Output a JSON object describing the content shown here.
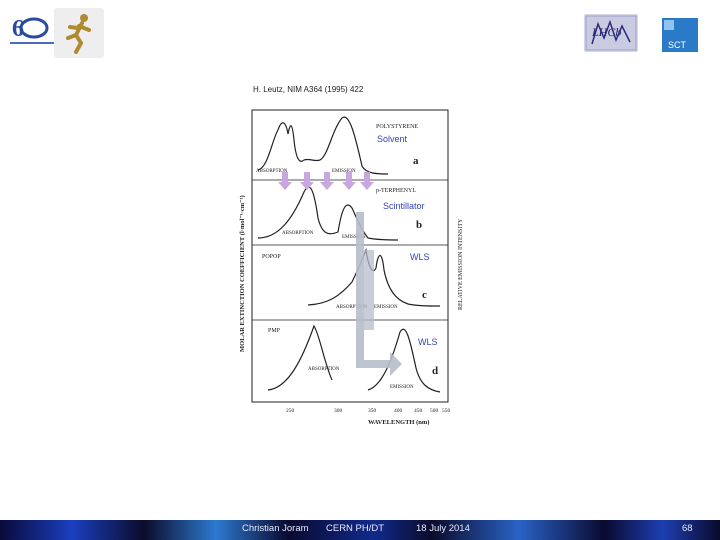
{
  "header": {
    "citation": "H. Leutz, NIM A364 (1995) 422"
  },
  "logos": {
    "lhcb_text": "LHCb",
    "sct_text": "SCT"
  },
  "figure": {
    "y_axis_left": "MOLAR EXTINCTION COEFFICIENT (l·mol⁻¹·cm⁻¹)",
    "y_axis_right": "RELATIVE EMISSION INTENSITY",
    "x_axis_label": "WAVELENGTH (nm)",
    "x_ticks": [
      "250",
      "300",
      "350",
      "400",
      "450",
      "500",
      "550"
    ],
    "panels": [
      {
        "compound": "POLYSTYRENE",
        "letter": "a",
        "absorption": "ABSORPTION",
        "emission": "EMISSION"
      },
      {
        "compound": "p-TERPHENYL",
        "letter": "b",
        "absorption": "ABSORPTION",
        "emission": "EMISSION"
      },
      {
        "compound": "POPOP",
        "letter": "c",
        "absorption": "ABSORPTION",
        "emission": "EMISSION"
      },
      {
        "compound": "PMP",
        "letter": "d",
        "absorption": "ABSORPTION",
        "emission": "EMISSION"
      }
    ],
    "overlays": {
      "solvent": "Solvent",
      "scintillator": "Scintillator",
      "wls_1": "WLS",
      "wls_2": "WLS"
    }
  },
  "footer": {
    "author": "Christian Joram",
    "affiliation": "CERN PH/DT",
    "date": "18 July 2014",
    "page": "68"
  },
  "colors": {
    "accent": "#3344bb",
    "arrow": "#b7bccb",
    "down_arrows": "#c8a6de"
  }
}
